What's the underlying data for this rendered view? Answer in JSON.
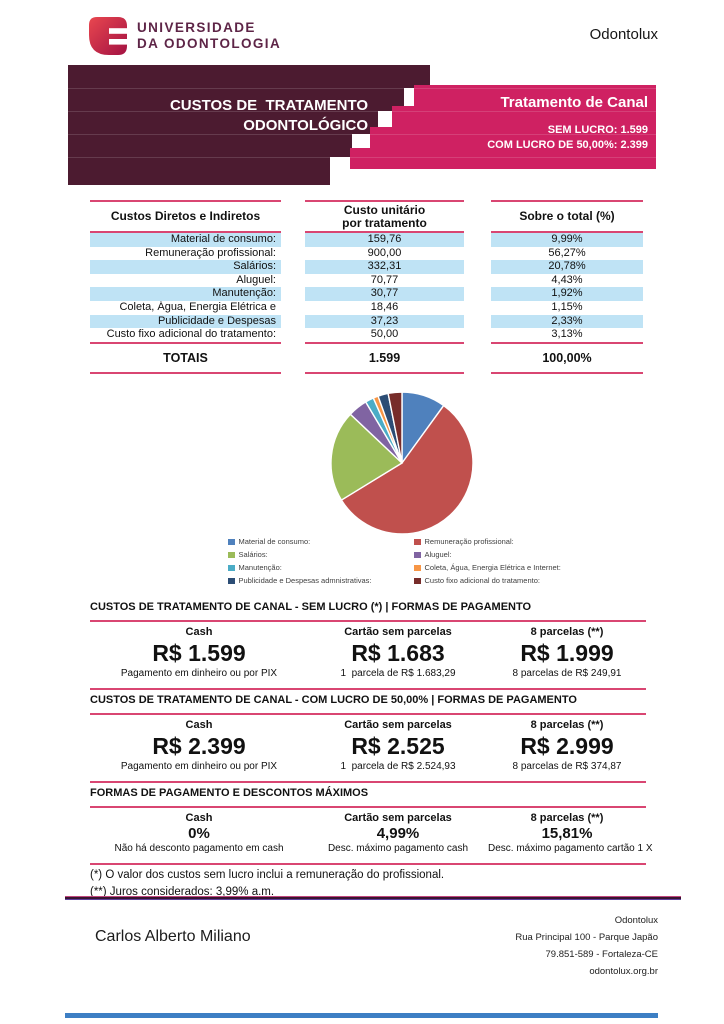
{
  "brand": {
    "logo_line1": "UNIVERSIDADE",
    "logo_line2": "DA ODONTOLOGIA",
    "top_right": "Odontolux"
  },
  "banner": {
    "title": "CUSTOS DE  TRATAMENTO\nODONTOLÓGICO",
    "treatment": "Tratamento de Canal",
    "sem_lucro": "SEM LUCRO: 1.599",
    "com_lucro": "COM LUCRO DE 50,00%: 2.399"
  },
  "costs_table": {
    "headers": [
      "Custos Diretos e Indiretos",
      "Custo unitário\npor tratamento",
      "Sobre o total (%)"
    ],
    "rows": [
      {
        "label": "Material de consumo:",
        "value": "159,76",
        "pct": "9,99%",
        "shaded": true
      },
      {
        "label": "Remuneração profissional:",
        "value": "900,00",
        "pct": "56,27%",
        "shaded": false
      },
      {
        "label": "Salários:",
        "value": "332,31",
        "pct": "20,78%",
        "shaded": true
      },
      {
        "label": "Aluguel:",
        "value": "70,77",
        "pct": "4,43%",
        "shaded": false
      },
      {
        "label": "Manutenção:",
        "value": "30,77",
        "pct": "1,92%",
        "shaded": true
      },
      {
        "label": "Coleta, Água, Energia Elétrica e",
        "value": "18,46",
        "pct": "1,15%",
        "shaded": false
      },
      {
        "label": "Publicidade e Despesas",
        "value": "37,23",
        "pct": "2,33%",
        "shaded": true
      },
      {
        "label": "Custo fixo adicional do tratamento:",
        "value": "50,00",
        "pct": "3,13%",
        "shaded": false
      }
    ],
    "totals": {
      "label": "TOTAIS",
      "value": "1.599",
      "pct": "100,00%"
    }
  },
  "chart_data": {
    "type": "pie",
    "labels": [
      "Material de consumo:",
      "Remuneração profissional:",
      "Salários:",
      "Aluguel:",
      "Manutenção:",
      "Coleta, Água, Energia Elétrica e Internet:",
      "Publicidade e Despesas admnistrativas:",
      "Custo fixo adicional do tratamento:"
    ],
    "values": [
      9.99,
      56.27,
      20.78,
      4.43,
      1.92,
      1.15,
      2.33,
      3.13
    ],
    "colors": [
      "#4f81bd",
      "#c0504d",
      "#9bbb59",
      "#8064a2",
      "#4bacc6",
      "#f79646",
      "#2c4d75",
      "#772c2a"
    ],
    "unit": "%",
    "start_angle_deg": -90,
    "direction": "clockwise",
    "legend_position": "bottom"
  },
  "payment_sections": [
    {
      "title": "CUSTOS DE TRATAMENTO DE CANAL - SEM LUCRO (*) | FORMAS DE PAGAMENTO",
      "style": "large",
      "columns": [
        {
          "header": "Cash",
          "value": "R$ 1.599",
          "note": "Pagamento em dinheiro ou por PIX"
        },
        {
          "header": "Cartão sem parcelas",
          "value": "R$ 1.683",
          "note": "1  parcela de R$ 1.683,29"
        },
        {
          "header": "8 parcelas (**)",
          "value": "R$ 1.999",
          "note": "8 parcelas de R$ 249,91"
        }
      ]
    },
    {
      "title": "CUSTOS DE TRATAMENTO DE CANAL - COM LUCRO DE 50,00% | FORMAS DE PAGAMENTO",
      "style": "large",
      "columns": [
        {
          "header": "Cash",
          "value": "R$ 2.399",
          "note": "Pagamento em dinheiro ou por PIX"
        },
        {
          "header": "Cartão sem parcelas",
          "value": "R$ 2.525",
          "note": "1  parcela de R$ 2.524,93"
        },
        {
          "header": "8 parcelas (**)",
          "value": "R$ 2.999",
          "note": "8 parcelas de R$ 374,87"
        }
      ]
    },
    {
      "title": "FORMAS DE PAGAMENTO E DESCONTOS MÁXIMOS",
      "style": "compact",
      "columns": [
        {
          "header": "Cash",
          "value": "0%",
          "note": "Não há desconto pagamento em cash"
        },
        {
          "header": "Cartão sem parcelas",
          "value": "4,99%",
          "note": "Desc. máximo pagamento cash"
        },
        {
          "header": "8 parcelas (**)",
          "value": "15,81%",
          "note": "Desc. máximo pagamento cartão 1 X"
        }
      ]
    }
  ],
  "footnotes": [
    "(*) O valor dos custos sem lucro inclui a remuneração do profissional.",
    "(**) Juros considerados: 3,99% a.m."
  ],
  "footer": {
    "name": "Carlos Alberto Miliano",
    "company": "Odontolux",
    "address_line1": "Rua Principal 100 - Parque Japão",
    "address_line2": "79.851-589 - Fortaleza-CE",
    "website": "odontolux.org.br"
  },
  "colors": {
    "banner_dark": "#4c1b30",
    "banner_pink": "#cf2162",
    "table_rule_pink": "#d94672",
    "row_shade_blue": "#bfe3f5",
    "footer_bar_blue": "#3d7fc4",
    "logo_plum": "#5e2547"
  }
}
